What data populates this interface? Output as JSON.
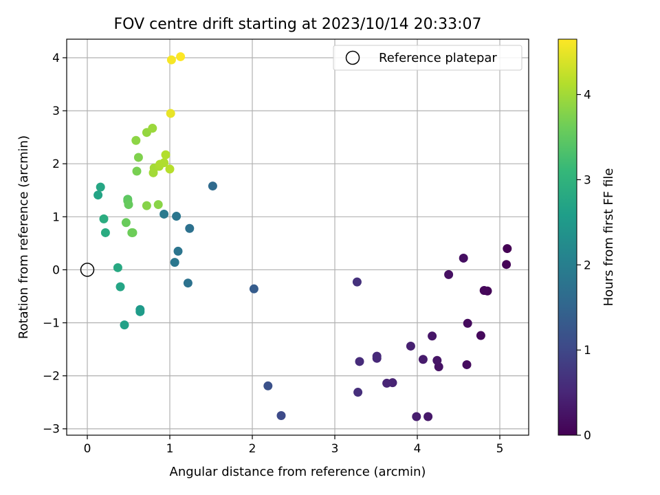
{
  "chart_data": {
    "type": "scatter",
    "title": "FOV centre drift starting at 2023/10/14 20:33:07",
    "xlabel": "Angular distance from reference (arcmin)",
    "ylabel": "Rotation from reference (arcmin)",
    "xlim": [
      -0.25,
      5.35
    ],
    "ylim": [
      -3.12,
      4.35
    ],
    "xticks": [
      0,
      1,
      2,
      3,
      4,
      5
    ],
    "yticks": [
      -3,
      -2,
      -1,
      0,
      1,
      2,
      3,
      4
    ],
    "grid": true,
    "legend": {
      "location": "top-right",
      "entries": [
        "Reference platepar"
      ]
    },
    "reference_point": {
      "x": 0,
      "y": 0,
      "label": "Reference platepar"
    },
    "colorbar": {
      "label": "Hours from first FF file",
      "colormap": "viridis",
      "range": [
        0,
        4.65
      ],
      "ticks": [
        0,
        1,
        2,
        3,
        4
      ]
    },
    "points": [
      {
        "x": 5.09,
        "y": 0.4,
        "hours": 0.0
      },
      {
        "x": 5.08,
        "y": 0.1,
        "hours": 0.03
      },
      {
        "x": 4.85,
        "y": -0.4,
        "hours": 0.05
      },
      {
        "x": 4.81,
        "y": -0.39,
        "hours": 0.08
      },
      {
        "x": 4.77,
        "y": -1.24,
        "hours": 0.1
      },
      {
        "x": 4.61,
        "y": -1.01,
        "hours": 0.13
      },
      {
        "x": 4.6,
        "y": -1.79,
        "hours": 0.15
      },
      {
        "x": 4.56,
        "y": 0.22,
        "hours": 0.18
      },
      {
        "x": 4.38,
        "y": -0.09,
        "hours": 0.2
      },
      {
        "x": 4.26,
        "y": -1.83,
        "hours": 0.23
      },
      {
        "x": 4.24,
        "y": -1.71,
        "hours": 0.26
      },
      {
        "x": 4.18,
        "y": -1.25,
        "hours": 0.28
      },
      {
        "x": 4.13,
        "y": -2.77,
        "hours": 0.3
      },
      {
        "x": 4.07,
        "y": -1.69,
        "hours": 0.35
      },
      {
        "x": 3.99,
        "y": -2.77,
        "hours": 0.38
      },
      {
        "x": 3.92,
        "y": -1.44,
        "hours": 0.42
      },
      {
        "x": 3.7,
        "y": -2.13,
        "hours": 0.45
      },
      {
        "x": 3.63,
        "y": -2.14,
        "hours": 0.48
      },
      {
        "x": 3.51,
        "y": -1.67,
        "hours": 0.52
      },
      {
        "x": 3.51,
        "y": -1.63,
        "hours": 0.55
      },
      {
        "x": 3.3,
        "y": -1.73,
        "hours": 0.58
      },
      {
        "x": 3.28,
        "y": -2.31,
        "hours": 0.62
      },
      {
        "x": 3.27,
        "y": -0.23,
        "hours": 0.65
      },
      {
        "x": 2.35,
        "y": -2.75,
        "hours": 1.05
      },
      {
        "x": 2.19,
        "y": -2.19,
        "hours": 1.15
      },
      {
        "x": 2.02,
        "y": -0.36,
        "hours": 1.35
      },
      {
        "x": 1.52,
        "y": 1.58,
        "hours": 1.6
      },
      {
        "x": 1.24,
        "y": 0.78,
        "hours": 1.72
      },
      {
        "x": 1.22,
        "y": -0.25,
        "hours": 1.75
      },
      {
        "x": 1.1,
        "y": 0.35,
        "hours": 1.8
      },
      {
        "x": 1.08,
        "y": 1.01,
        "hours": 1.82
      },
      {
        "x": 1.06,
        "y": 0.14,
        "hours": 1.85
      },
      {
        "x": 0.93,
        "y": 1.05,
        "hours": 1.9
      },
      {
        "x": 0.64,
        "y": -0.75,
        "hours": 2.5
      },
      {
        "x": 0.64,
        "y": -0.79,
        "hours": 2.55
      },
      {
        "x": 0.45,
        "y": -1.04,
        "hours": 2.65
      },
      {
        "x": 0.4,
        "y": -0.32,
        "hours": 2.72
      },
      {
        "x": 0.37,
        "y": 0.04,
        "hours": 2.8
      },
      {
        "x": 0.22,
        "y": 0.7,
        "hours": 2.85
      },
      {
        "x": 0.2,
        "y": 0.96,
        "hours": 2.88
      },
      {
        "x": 0.16,
        "y": 1.56,
        "hours": 2.75
      },
      {
        "x": 0.13,
        "y": 1.41,
        "hours": 2.7
      },
      {
        "x": 0.49,
        "y": 1.33,
        "hours": 3.45
      },
      {
        "x": 0.49,
        "y": 1.3,
        "hours": 3.5
      },
      {
        "x": 0.5,
        "y": 1.23,
        "hours": 3.55
      },
      {
        "x": 0.47,
        "y": 0.89,
        "hours": 3.58
      },
      {
        "x": 0.54,
        "y": 0.7,
        "hours": 3.6
      },
      {
        "x": 0.55,
        "y": 0.7,
        "hours": 3.62
      },
      {
        "x": 0.72,
        "y": 1.21,
        "hours": 3.8
      },
      {
        "x": 0.86,
        "y": 1.23,
        "hours": 3.82
      },
      {
        "x": 0.6,
        "y": 1.86,
        "hours": 3.7
      },
      {
        "x": 0.62,
        "y": 2.12,
        "hours": 3.75
      },
      {
        "x": 0.59,
        "y": 2.44,
        "hours": 3.85
      },
      {
        "x": 0.72,
        "y": 2.59,
        "hours": 3.9
      },
      {
        "x": 0.79,
        "y": 2.67,
        "hours": 3.95
      },
      {
        "x": 0.8,
        "y": 1.83,
        "hours": 4.0
      },
      {
        "x": 0.81,
        "y": 1.92,
        "hours": 4.02
      },
      {
        "x": 0.87,
        "y": 1.95,
        "hours": 4.05
      },
      {
        "x": 0.88,
        "y": 1.99,
        "hours": 4.08
      },
      {
        "x": 0.93,
        "y": 2.02,
        "hours": 4.1
      },
      {
        "x": 0.95,
        "y": 2.17,
        "hours": 4.12
      },
      {
        "x": 1.0,
        "y": 1.9,
        "hours": 4.15
      },
      {
        "x": 1.01,
        "y": 2.95,
        "hours": 4.5
      },
      {
        "x": 1.02,
        "y": 3.96,
        "hours": 4.6
      },
      {
        "x": 1.13,
        "y": 4.02,
        "hours": 4.65
      }
    ]
  }
}
